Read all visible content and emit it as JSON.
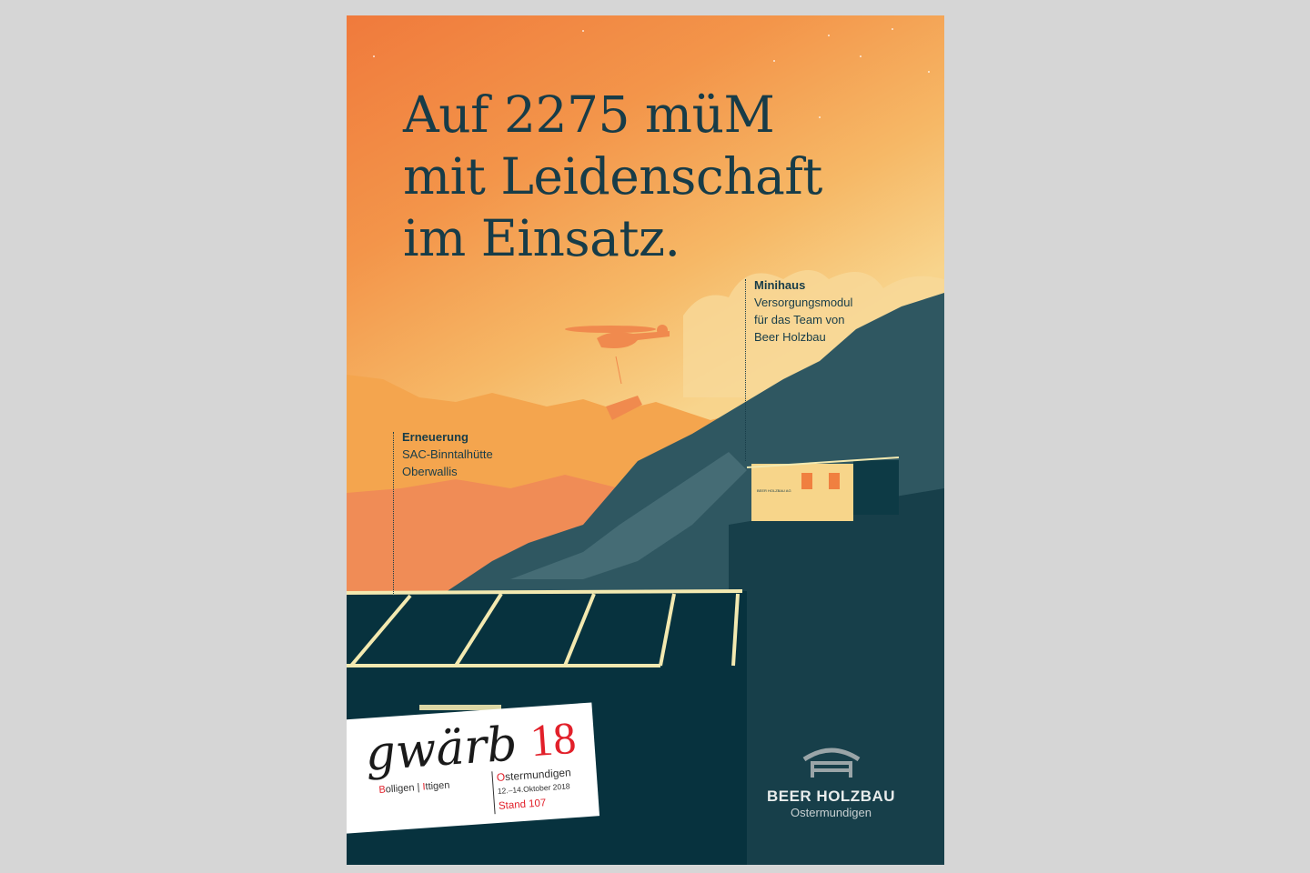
{
  "headline": [
    "Auf 2275 müM",
    "mit Leidenschaft",
    "im Einsatz."
  ],
  "annotations": {
    "minihaus": {
      "title": "Minihaus",
      "lines": [
        "Versorgungsmodul",
        "für das Team von",
        "Beer Holzbau"
      ]
    },
    "erneuerung": {
      "title": "Erneuerung",
      "lines": [
        "SAC-Binntalhütte",
        "Oberwallis"
      ]
    }
  },
  "hut_sign": "BEER HOLZBAU AG",
  "event": {
    "name": "gwärb",
    "year": "18",
    "towns": [
      {
        "initial": "B",
        "rest": "olligen"
      },
      {
        "initial": "I",
        "rest": "ttigen"
      },
      {
        "initial": "O",
        "rest": "stermundigen"
      }
    ],
    "dates": "12.–14.Oktober 2018",
    "stand": "Stand 107"
  },
  "logo": {
    "name": "BEER HOLZBAU",
    "city": "Ostermundigen"
  },
  "colors": {
    "sky_top": "#f07a3c",
    "sky_bottom": "#f8d48c",
    "mountain": "#2f5761",
    "dark": "#07323e",
    "text": "#173c48",
    "accent_red": "#e2202a"
  }
}
